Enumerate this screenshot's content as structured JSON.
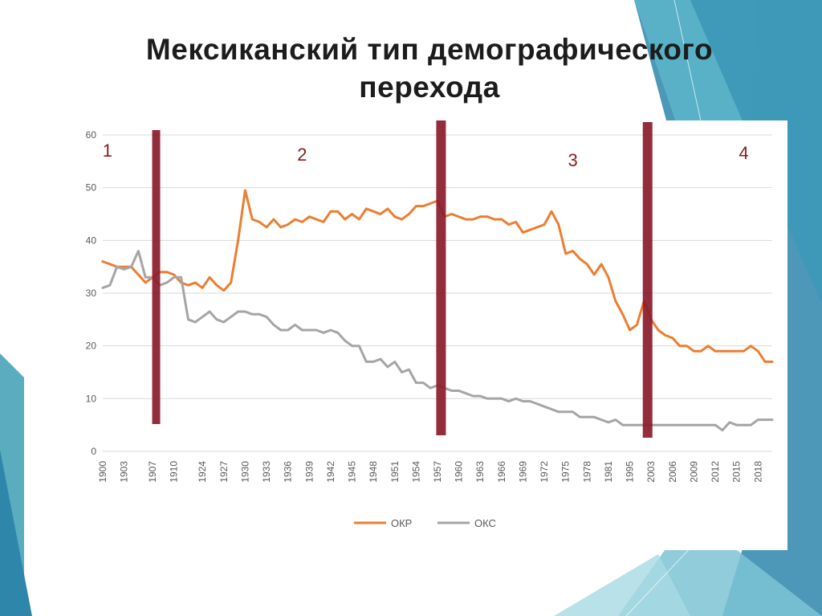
{
  "slide": {
    "title_line1": "Мексиканский тип демографического",
    "title_line2": "перехода"
  },
  "colors": {
    "okr": "#ed7d31",
    "oks": "#a5a5a5",
    "divider": "#8b1a2b",
    "phase_label": "#8b1a1a",
    "accent_teal": "#4aa3b8"
  },
  "icons": [
    "slide-decoration-triangles"
  ],
  "chart_data": {
    "type": "line",
    "title": "",
    "xlabel": "",
    "ylabel": "",
    "ylim": [
      0,
      60
    ],
    "yticks": [
      0,
      10,
      20,
      30,
      40,
      50,
      60
    ],
    "grid": true,
    "legend_position": "bottom",
    "categories": [
      "1900",
      "1901",
      "1902",
      "1903",
      "1904",
      "1905",
      "1906",
      "1907",
      "1908",
      "1909",
      "1910",
      "1911",
      "1922",
      "1923",
      "1924",
      "1925",
      "1926",
      "1927",
      "1928",
      "1929",
      "1930",
      "1931",
      "1932",
      "1933",
      "1934",
      "1935",
      "1936",
      "1937",
      "1938",
      "1939",
      "1940",
      "1941",
      "1942",
      "1943",
      "1944",
      "1945",
      "1946",
      "1947",
      "1948",
      "1949",
      "1950",
      "1951",
      "1952",
      "1953",
      "1954",
      "1955",
      "1956",
      "1957",
      "1958",
      "1959",
      "1960",
      "1961",
      "1962",
      "1963",
      "1964",
      "1965",
      "1966",
      "1967",
      "1968",
      "1969",
      "1970",
      "1971",
      "1972",
      "1973",
      "1974",
      "1975",
      "1976",
      "1977",
      "1978",
      "1979",
      "1980",
      "1981",
      "1982",
      "1994",
      "1995",
      "1996",
      "2002",
      "2003",
      "2004",
      "2005",
      "2006",
      "2007",
      "2008",
      "2009",
      "2010",
      "2011",
      "2012",
      "2013",
      "2014",
      "2015",
      "2016",
      "2017",
      "2018",
      "2019",
      "2020"
    ],
    "tick_labels": [
      "1900",
      "1903",
      "1907",
      "1910",
      "1924",
      "1927",
      "1930",
      "1933",
      "1936",
      "1939",
      "1942",
      "1945",
      "1948",
      "1951",
      "1954",
      "1957",
      "1960",
      "1963",
      "1966",
      "1969",
      "1972",
      "1975",
      "1978",
      "1981",
      "1995",
      "2003",
      "2006",
      "2009",
      "2012",
      "2015",
      "2018"
    ],
    "series": [
      {
        "name": "ОКР",
        "values": [
          36,
          35.5,
          35,
          35,
          35,
          33.5,
          32,
          33,
          34,
          34,
          33.5,
          32,
          31.5,
          32,
          31,
          33,
          31.5,
          30.5,
          32,
          40,
          49.5,
          44,
          43.5,
          42.5,
          44,
          42.5,
          43,
          44,
          43.5,
          44.5,
          44,
          43.5,
          45.5,
          45.5,
          44,
          45,
          44,
          46,
          45.5,
          45,
          46,
          44.5,
          44,
          45,
          46.5,
          46.5,
          47,
          47.5,
          44.5,
          45,
          44.5,
          44,
          44,
          44.5,
          44.5,
          44,
          44,
          43,
          43.5,
          41.5,
          42,
          42.5,
          43,
          45.5,
          43,
          37.5,
          38,
          36.5,
          35.5,
          33.5,
          35.5,
          33,
          28.5,
          26,
          23,
          24,
          28.5,
          25,
          23,
          22,
          21.5,
          20,
          20,
          19,
          19,
          20,
          19,
          19,
          19,
          19,
          19,
          20,
          19,
          17,
          17
        ]
      },
      {
        "name": "ОКС",
        "values": [
          31,
          31.5,
          35,
          34.5,
          35,
          38,
          33,
          33,
          31.5,
          32,
          33,
          33,
          25,
          24.5,
          25.5,
          26.5,
          25,
          24.5,
          25.5,
          26.5,
          26.5,
          26,
          26,
          25.5,
          24,
          23,
          23,
          24,
          23,
          23,
          23,
          22.5,
          23,
          22.5,
          21,
          20,
          20,
          17,
          17,
          17.5,
          16,
          17,
          15,
          15.5,
          13,
          13,
          12,
          12.5,
          12,
          11.5,
          11.5,
          11,
          10.5,
          10.5,
          10,
          10,
          10,
          9.5,
          10,
          9.5,
          9.5,
          9,
          8.5,
          8,
          7.5,
          7.5,
          7.5,
          6.5,
          6.5,
          6.5,
          6,
          5.5,
          6,
          5,
          5,
          5,
          5,
          5,
          5,
          5,
          5,
          5,
          5,
          5,
          5,
          5,
          5,
          4,
          5.5,
          5,
          5,
          5,
          6,
          6,
          6
        ]
      }
    ],
    "phase_labels": [
      "1",
      "2",
      "3",
      "4"
    ],
    "phase_dividers_after": [
      "1907",
      "1957",
      "2002"
    ]
  }
}
